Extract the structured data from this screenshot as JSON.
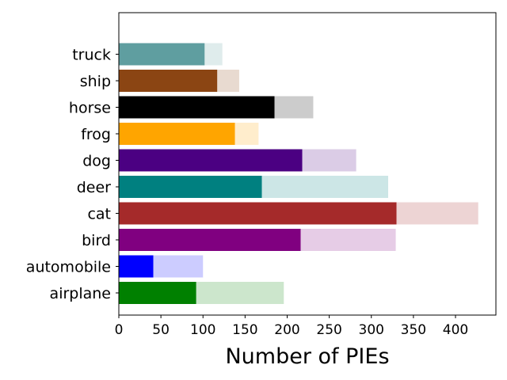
{
  "chart_data": {
    "type": "bar",
    "orientation": "horizontal",
    "stacked": true,
    "categories": [
      "airplane",
      "automobile",
      "bird",
      "cat",
      "deer",
      "dog",
      "frog",
      "horse",
      "ship",
      "truck"
    ],
    "series": [
      {
        "values": [
          92,
          41,
          216,
          330,
          170,
          218,
          138,
          185,
          117,
          102
        ],
        "colors": [
          "#008000",
          "#0000ff",
          "#800080",
          "#a52a2a",
          "#008080",
          "#4b0082",
          "#ffa500",
          "#000000",
          "#8b4513",
          "#5f9ea0"
        ]
      },
      {
        "values": [
          104,
          59,
          113,
          97,
          150,
          64,
          28,
          46,
          26,
          21
        ],
        "colors": [
          "#cce6cc",
          "#ccccff",
          "#e6cce6",
          "#edd4d4",
          "#cce6e6",
          "#dbcce6",
          "#ffedcc",
          "#cccccc",
          "#e8dad0",
          "#dfecec"
        ]
      }
    ],
    "x_ticks": [
      "0",
      "50",
      "100",
      "150",
      "200",
      "250",
      "300",
      "350",
      "400"
    ],
    "x_tick_values": [
      0,
      50,
      100,
      150,
      200,
      250,
      300,
      350,
      400
    ],
    "xlim": [
      0,
      448
    ],
    "xlabel": "Number of PIEs",
    "ylabel": "",
    "title": "",
    "grid": false,
    "legend": "none"
  }
}
